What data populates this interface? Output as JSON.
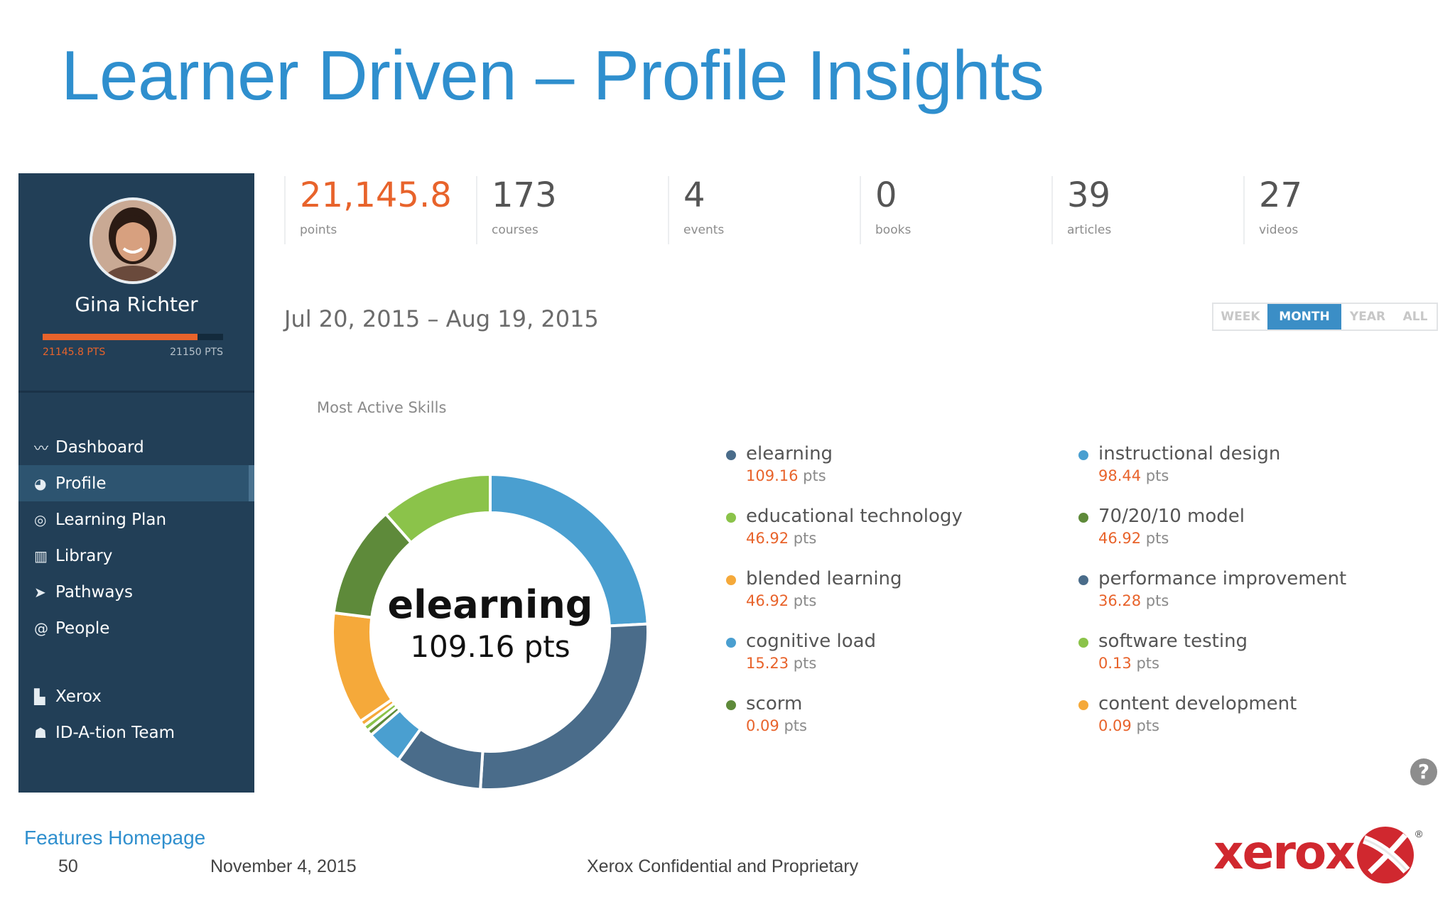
{
  "slide": {
    "title": "Learner Driven – Profile Insights",
    "footer": {
      "link": "Features Homepage",
      "page_number": "50",
      "date": "November 4, 2015",
      "confidential": "Xerox Confidential and Proprietary"
    },
    "logo_text": "xerox",
    "logo_registered": "®"
  },
  "profile": {
    "name": "Gina Richter",
    "points_current": "21145.8 PTS",
    "points_target": "21150 PTS",
    "progress_fraction": 0.86
  },
  "nav": {
    "items": [
      {
        "label": "Dashboard",
        "icon": "chart-line-icon",
        "glyph": "〰"
      },
      {
        "label": "Profile",
        "icon": "user-icon",
        "glyph": "◕",
        "active": true
      },
      {
        "label": "Learning Plan",
        "icon": "target-icon",
        "glyph": "◎"
      },
      {
        "label": "Library",
        "icon": "library-icon",
        "glyph": "▥"
      },
      {
        "label": "Pathways",
        "icon": "send-icon",
        "glyph": "➤"
      },
      {
        "label": "People",
        "icon": "at-icon",
        "glyph": "@"
      }
    ],
    "groups": [
      {
        "label": "Xerox",
        "icon": "building-icon",
        "glyph": "▙"
      },
      {
        "label": "ID-A-tion Team",
        "icon": "users-icon",
        "glyph": "☗"
      }
    ]
  },
  "stats": [
    {
      "value": "21,145.8",
      "label": "points"
    },
    {
      "value": "173",
      "label": "courses"
    },
    {
      "value": "4",
      "label": "events"
    },
    {
      "value": "0",
      "label": "books"
    },
    {
      "value": "39",
      "label": "articles"
    },
    {
      "value": "27",
      "label": "videos"
    }
  ],
  "date_range": "Jul 20, 2015 – Aug 19, 2015",
  "range_options": [
    "WEEK",
    "MONTH",
    "YEAR",
    "ALL"
  ],
  "range_selected": "MONTH",
  "skills": {
    "title": "Most Active Skills",
    "center_label": "elearning",
    "center_value": "109.16 pts",
    "unit": "pts",
    "legend": [
      {
        "name": "elearning",
        "pts": "109.16",
        "color": "#4a6c8a"
      },
      {
        "name": "educational technology",
        "pts": "46.92",
        "color": "#8bc34a"
      },
      {
        "name": "blended learning",
        "pts": "46.92",
        "color": "#f5a93a"
      },
      {
        "name": "cognitive load",
        "pts": "15.23",
        "color": "#4a9fd0"
      },
      {
        "name": "scorm",
        "pts": "0.09",
        "color": "#5e8a3a"
      },
      {
        "name": "instructional design",
        "pts": "98.44",
        "color": "#4a9fd0"
      },
      {
        "name": "70/20/10 model",
        "pts": "46.92",
        "color": "#5e8a3a"
      },
      {
        "name": "performance improvement",
        "pts": "36.28",
        "color": "#4a6c8a"
      },
      {
        "name": "software testing",
        "pts": "0.13",
        "color": "#8bc34a"
      },
      {
        "name": "content development",
        "pts": "0.09",
        "color": "#f5a93a"
      }
    ],
    "donut_order": [
      5,
      0,
      7,
      3,
      4,
      8,
      9,
      2,
      6,
      1
    ],
    "colors": {
      "dark_blue": "#4a6c8a",
      "light_blue": "#4a9fd0",
      "light_green": "#8bc34a",
      "dark_green": "#5e8a3a",
      "orange": "#f5a93a"
    }
  },
  "help_glyph": "?"
}
